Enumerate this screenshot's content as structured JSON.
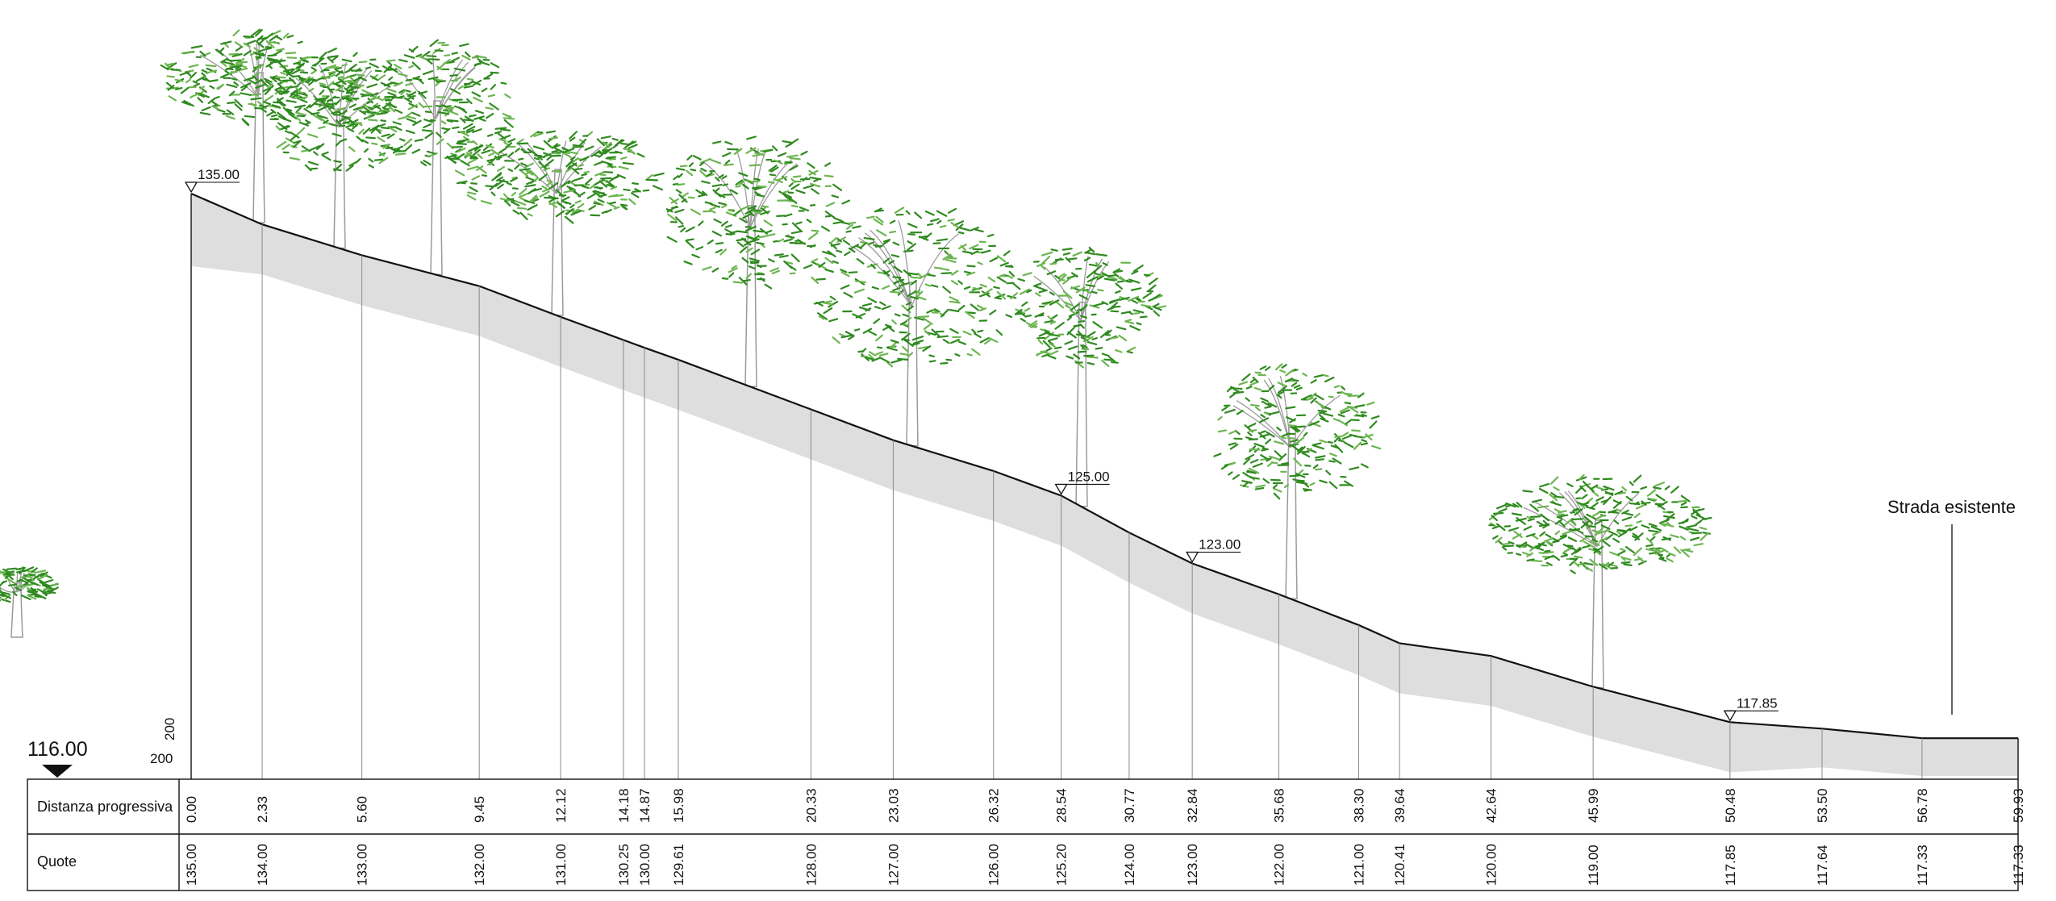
{
  "colors": {
    "line": "#111111",
    "grid": "#8a8a8a",
    "ground_fill": "#dedede",
    "foliage": "#2f8a1f",
    "foliage_light": "#6db552",
    "trunk": "#9a9a9a"
  },
  "datum": {
    "value": "116.00",
    "scale_h": "200",
    "scale_v": "200"
  },
  "labels": {
    "road": "Strada esistente",
    "row_distance": "Distanza progressiva",
    "row_elevation": "Quote"
  },
  "level_markers": [
    "135.00",
    "125.00",
    "123.00",
    "117.85"
  ],
  "icons": {
    "datum": "triangle-down-icon",
    "level": "level-triangle-icon",
    "tree": "tree-icon"
  },
  "chart_data": {
    "type": "line",
    "xlabel": "Distanza progressiva",
    "ylabel": "Quote",
    "distances": [
      "0.00",
      "2.33",
      "5.60",
      "9.45",
      "12.12",
      "14.18",
      "14.87",
      "15.98",
      "20.33",
      "23.03",
      "26.32",
      "28.54",
      "30.77",
      "32.84",
      "35.68",
      "38.30",
      "39.64",
      "42.64",
      "45.99",
      "50.48",
      "53.50",
      "56.78",
      "59.93"
    ],
    "elevations": [
      "135.00",
      "134.00",
      "133.00",
      "132.00",
      "131.00",
      "130.25",
      "130.00",
      "129.61",
      "128.00",
      "127.00",
      "126.00",
      "125.20",
      "124.00",
      "123.00",
      "122.00",
      "121.00",
      "120.41",
      "120.00",
      "119.00",
      "117.85",
      "117.64",
      "117.33",
      "117.33"
    ],
    "x": [
      0.0,
      2.33,
      5.6,
      9.45,
      12.12,
      14.18,
      14.87,
      15.98,
      20.33,
      23.03,
      26.32,
      28.54,
      30.77,
      32.84,
      35.68,
      38.3,
      39.64,
      42.64,
      45.99,
      50.48,
      53.5,
      56.78,
      59.93
    ],
    "y": [
      135.0,
      134.0,
      133.0,
      132.0,
      131.0,
      130.25,
      130.0,
      129.61,
      128.0,
      127.0,
      126.0,
      125.2,
      124.0,
      123.0,
      122.0,
      121.0,
      120.41,
      120.0,
      119.0,
      117.85,
      117.64,
      117.33,
      117.33
    ],
    "datum": 116.0,
    "ylim": [
      116.0,
      135.0
    ],
    "xlim": [
      0.0,
      59.93
    ]
  }
}
